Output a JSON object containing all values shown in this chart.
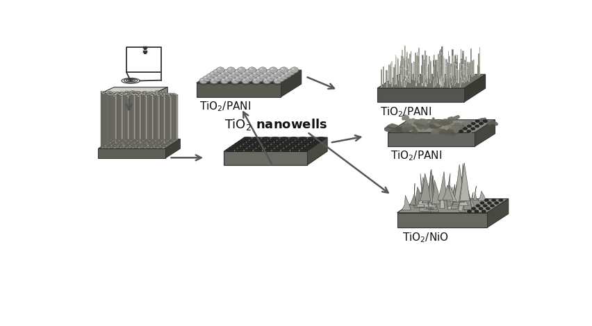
{
  "bg_color": "#ffffff",
  "slab_top": "#a0a090",
  "slab_right": "#505048",
  "slab_front": "#686860",
  "slab_top2": "#989888",
  "hole_dark": "#2a2a2a",
  "bump_color": "#888878",
  "peak_color": "#aaaaaa",
  "rod_color": "#909090",
  "tube_color": "#8a8a8a",
  "arrow_color": "#555555",
  "text_color": "#111111",
  "font_size_label": 11,
  "font_size_title": 13,
  "electrospinning_box_top": "#d0d0c8",
  "electrospinning_box_side": "#888880",
  "circuit_color": "#333333"
}
